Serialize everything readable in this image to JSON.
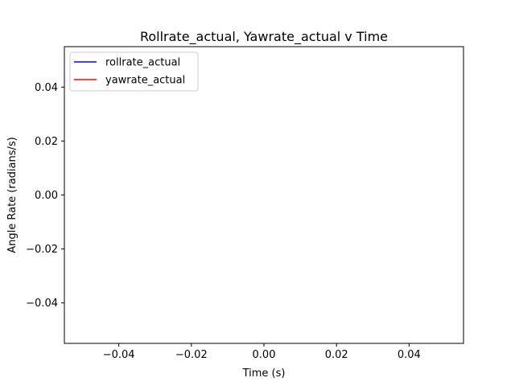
{
  "chart_data": {
    "type": "line",
    "title": "Rollrate_actual, Yawrate_actual  v Time",
    "xlabel": "Time (s)",
    "ylabel": "Angle Rate (radians/s)",
    "xlim": [
      -0.055,
      0.055
    ],
    "ylim": [
      -0.055,
      0.055
    ],
    "x_ticks": [
      -0.04,
      -0.02,
      0.0,
      0.02,
      0.04
    ],
    "x_tick_labels": [
      "−0.04",
      "−0.02",
      "0.00",
      "0.02",
      "0.04"
    ],
    "y_ticks": [
      -0.04,
      -0.02,
      0.0,
      0.02,
      0.04
    ],
    "y_tick_labels": [
      "−0.04",
      "−0.02",
      "0.00",
      "0.02",
      "0.04"
    ],
    "grid": false,
    "legend_position": "top-left",
    "series": [
      {
        "name": "rollrate_actual",
        "color": "#0000ff",
        "x": [],
        "y": []
      },
      {
        "name": "yawrate_actual",
        "color": "#ff0000",
        "x": [],
        "y": []
      }
    ]
  }
}
